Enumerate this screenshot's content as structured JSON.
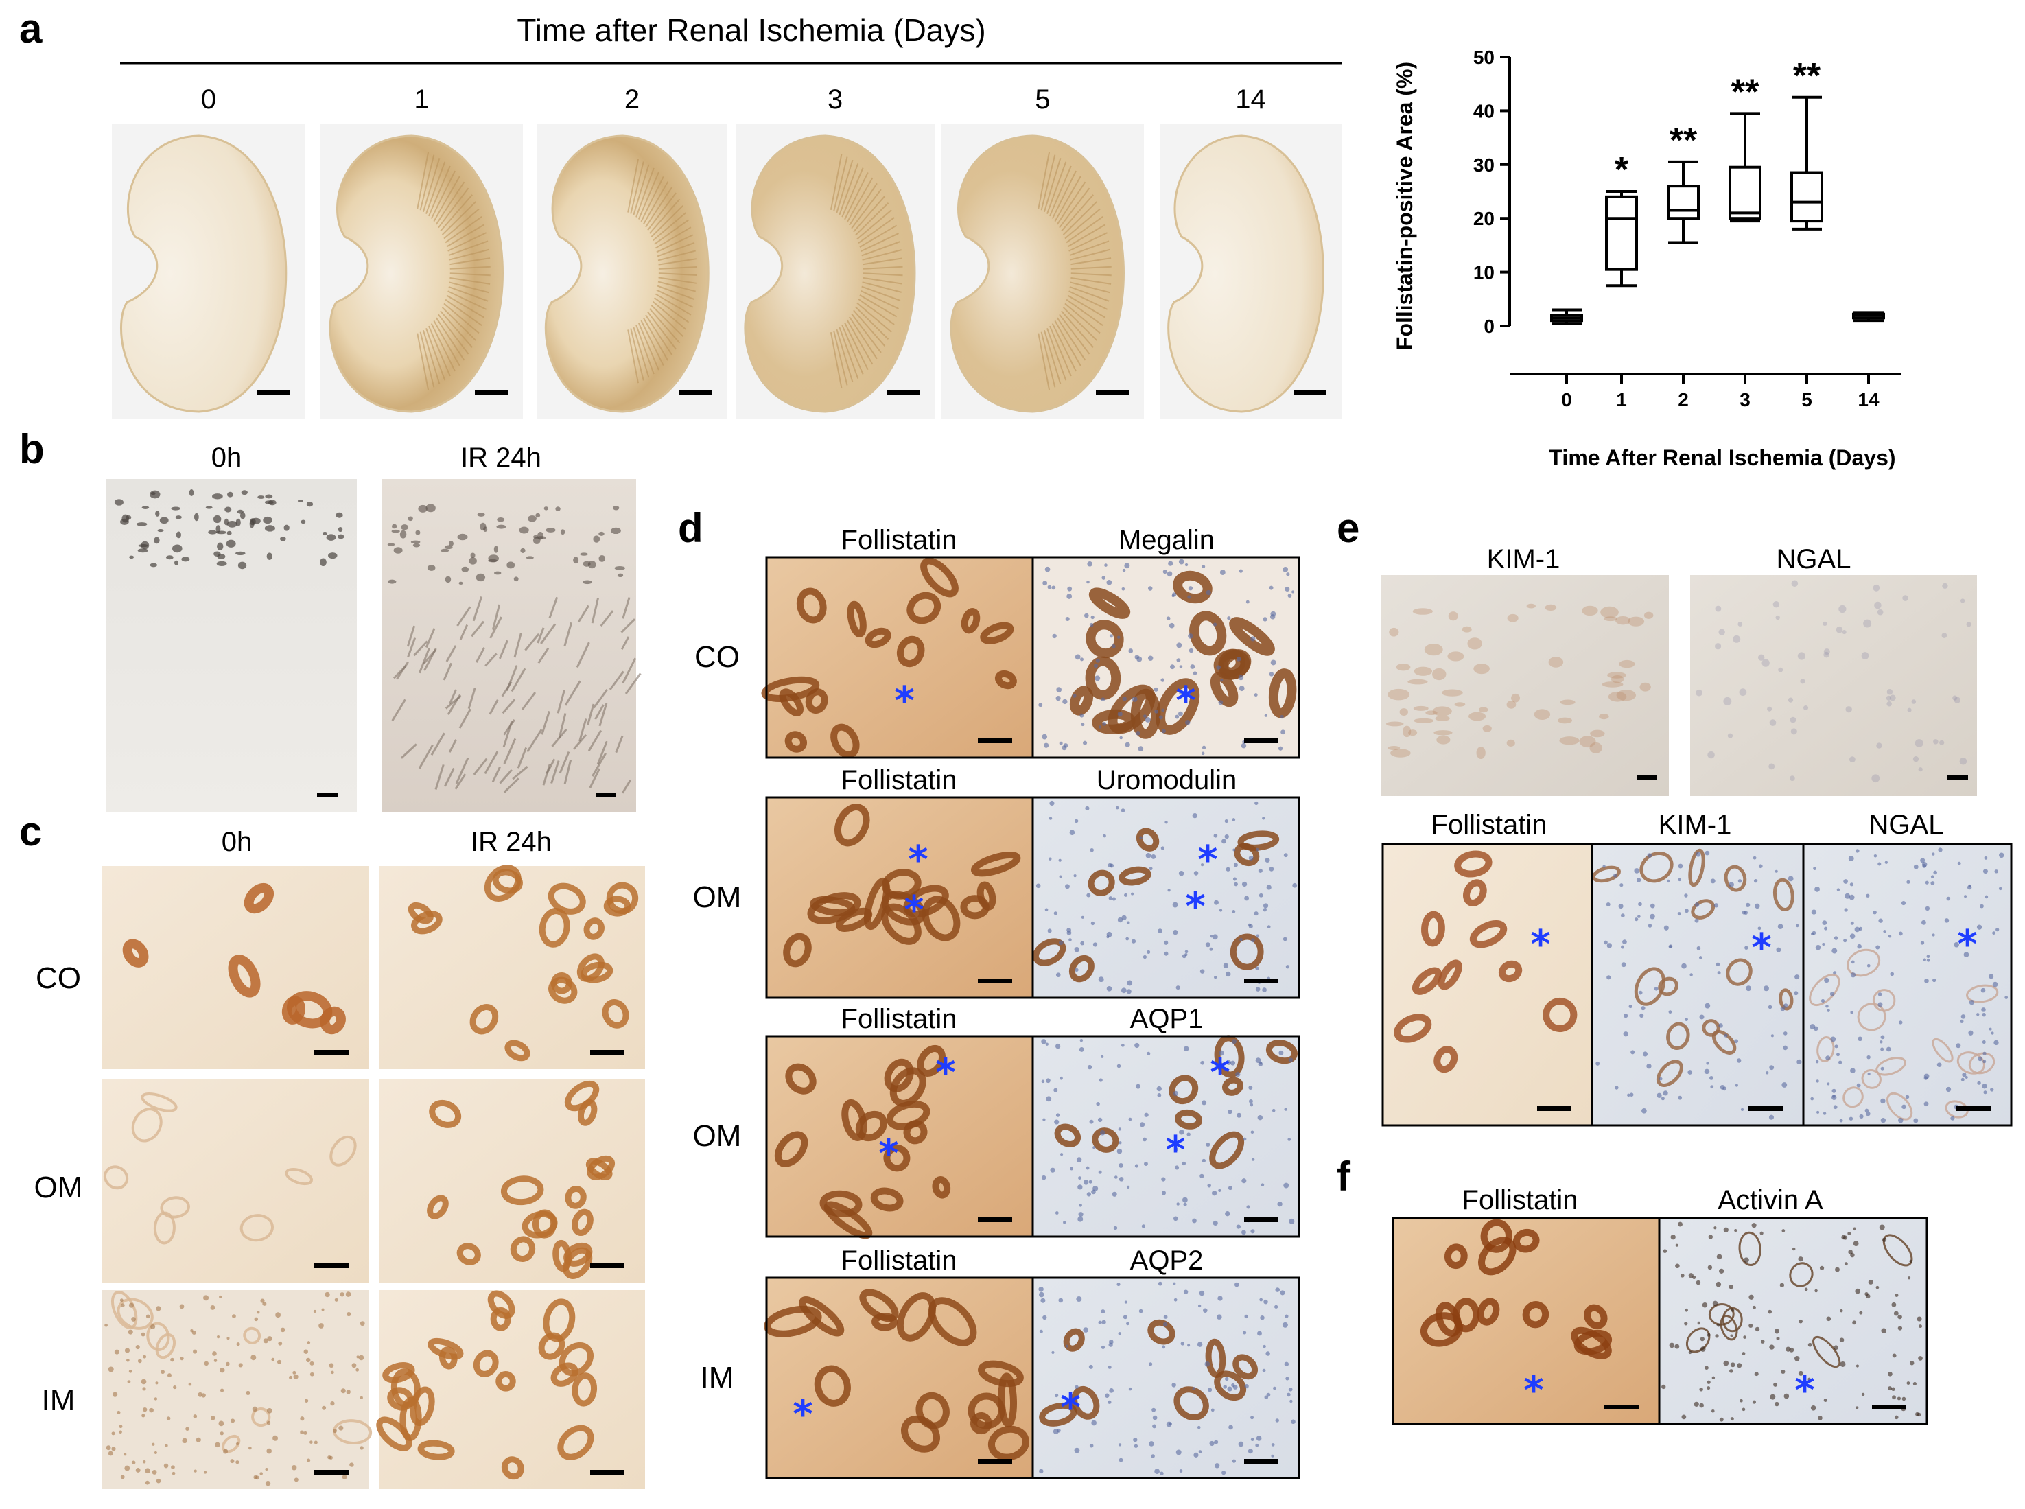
{
  "panel_a": {
    "letter": "a",
    "title": "Time after Renal Ischemia (Days)",
    "days": [
      "0",
      "1",
      "2",
      "3",
      "5",
      "14"
    ]
  },
  "panel_b": {
    "letter": "b",
    "columns": [
      "0h",
      "IR 24h"
    ]
  },
  "panel_c": {
    "letter": "c",
    "columns": [
      "0h",
      "IR 24h"
    ],
    "rows": [
      "CO",
      "OM",
      "IM"
    ]
  },
  "panel_d": {
    "letter": "d",
    "rows": [
      {
        "label": "CO",
        "left": "Follistatin",
        "right": "Megalin"
      },
      {
        "label": "OM",
        "left": "Follistatin",
        "right": "Uromodulin"
      },
      {
        "label": "OM",
        "left": "Follistatin",
        "right": "AQP1"
      },
      {
        "label": "IM",
        "left": "Follistatin",
        "right": "AQP2"
      }
    ]
  },
  "panel_e": {
    "letter": "e",
    "top": [
      "KIM-1",
      "NGAL"
    ],
    "bottom": [
      "Follistatin",
      "KIM-1",
      "NGAL"
    ]
  },
  "panel_f": {
    "letter": "f",
    "columns": [
      "Follistatin",
      "Activin A"
    ]
  },
  "asterisk": "*",
  "chart_data": {
    "type": "box",
    "ylabel": "Follistatin-positive Area (%)",
    "xlabel": "Time After Renal Ischemia (Days)",
    "ylim": [
      0,
      50
    ],
    "yticks": [
      "0",
      "10",
      "20",
      "30",
      "40",
      "50"
    ],
    "categories": [
      "0",
      "1",
      "2",
      "3",
      "5",
      "14"
    ],
    "boxes": [
      {
        "min": 0.5,
        "q1": 1.0,
        "median": 1.5,
        "q3": 2.0,
        "max": 3.0
      },
      {
        "min": 7.5,
        "q1": 10.5,
        "median": 20.0,
        "q3": 24.0,
        "max": 25.0
      },
      {
        "min": 15.5,
        "q1": 20.0,
        "median": 21.5,
        "q3": 26.0,
        "max": 30.5
      },
      {
        "min": 19.5,
        "q1": 20.0,
        "median": 21.0,
        "q3": 29.5,
        "max": 39.5
      },
      {
        "min": 18.0,
        "q1": 19.5,
        "median": 23.0,
        "q3": 28.5,
        "max": 42.5
      },
      {
        "min": 1.0,
        "q1": 1.5,
        "median": 2.0,
        "q3": 2.2,
        "max": 2.5
      }
    ],
    "significance": [
      "",
      "*",
      "**",
      "**",
      "**",
      ""
    ],
    "grid": false
  }
}
